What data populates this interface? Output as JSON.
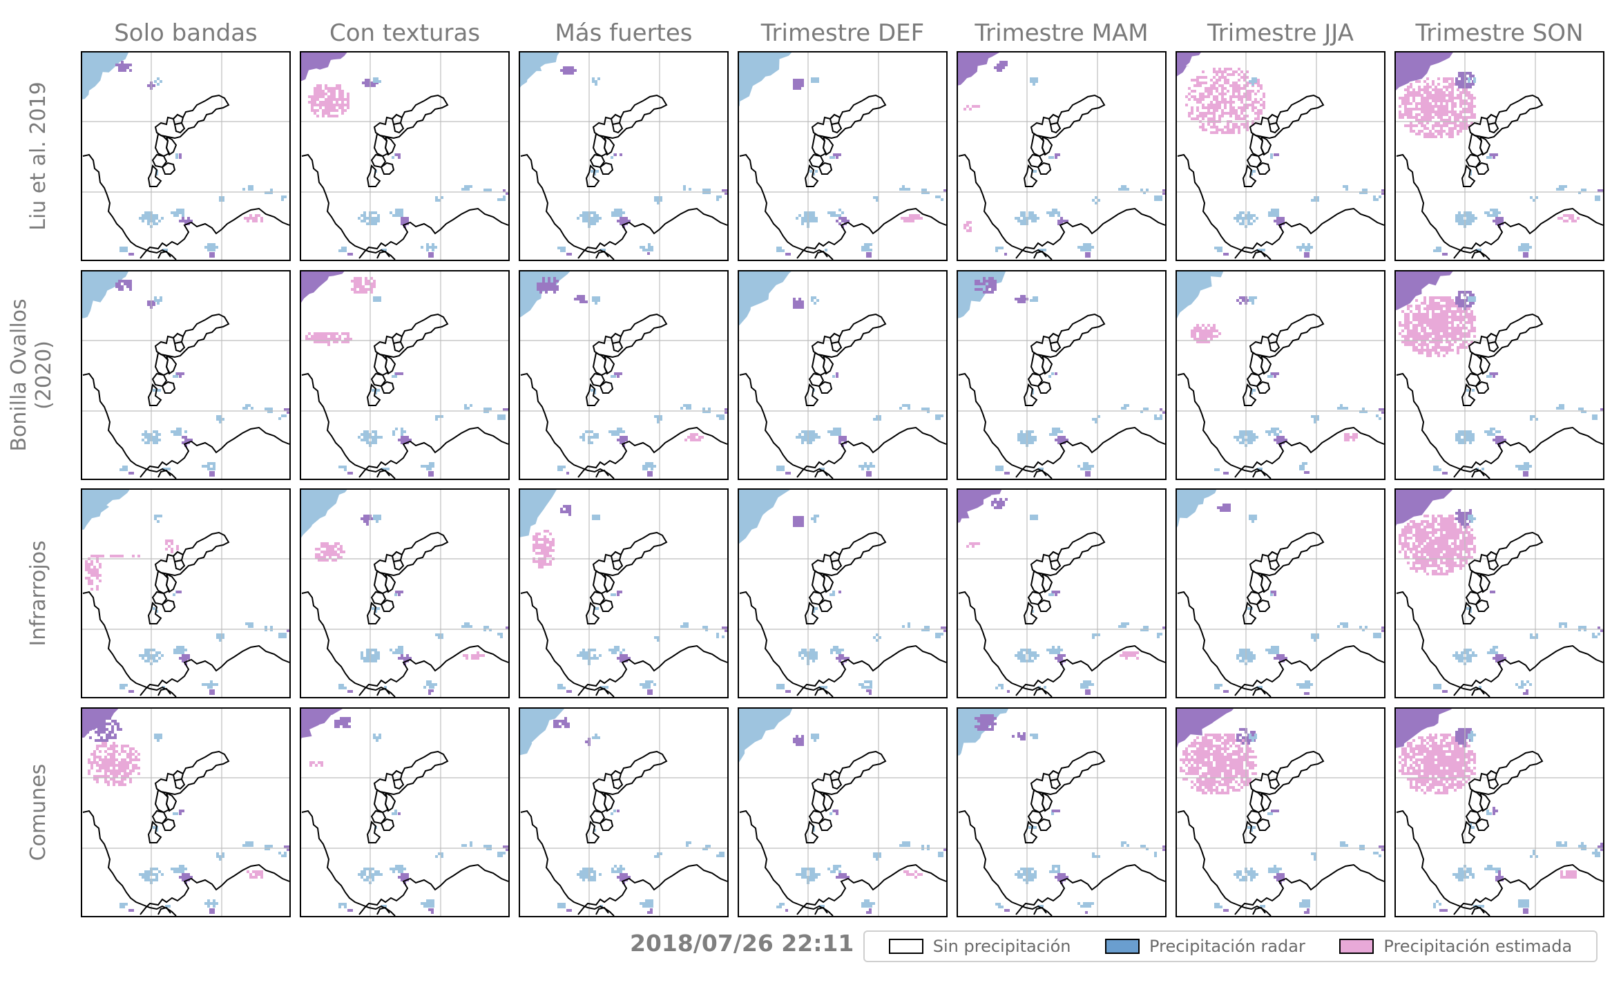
{
  "colors": {
    "radar": "#9ec4df",
    "estimated": "#e8a9d8",
    "both": "#9a78c2",
    "none": "#ffffff",
    "grid": "#bdbdbd",
    "coast": "#000000"
  },
  "columns": [
    {
      "title": "Solo bandas"
    },
    {
      "title": "Con texturas"
    },
    {
      "title": "Más fuertes"
    },
    {
      "title": "Trimestre DEF"
    },
    {
      "title": "Trimestre MAM"
    },
    {
      "title": "Trimestre JJA"
    },
    {
      "title": "Trimestre SON"
    }
  ],
  "rows": [
    {
      "label_lines": [
        "Liu et al. 2019"
      ]
    },
    {
      "label_lines": [
        "Bonilla Ovallos",
        "(2020)"
      ]
    },
    {
      "label_lines": [
        "Infrarrojos"
      ]
    },
    {
      "label_lines": [
        "Comunes"
      ]
    }
  ],
  "timestamp": "2018/07/26 22:11",
  "legend": [
    {
      "label": "Sin precipitación",
      "color": "#ffffff"
    },
    {
      "label": "Precipitación radar",
      "color": "#6a9ecf"
    },
    {
      "label": "Precipitación estimada",
      "color": "#e8a9d8"
    }
  ]
}
